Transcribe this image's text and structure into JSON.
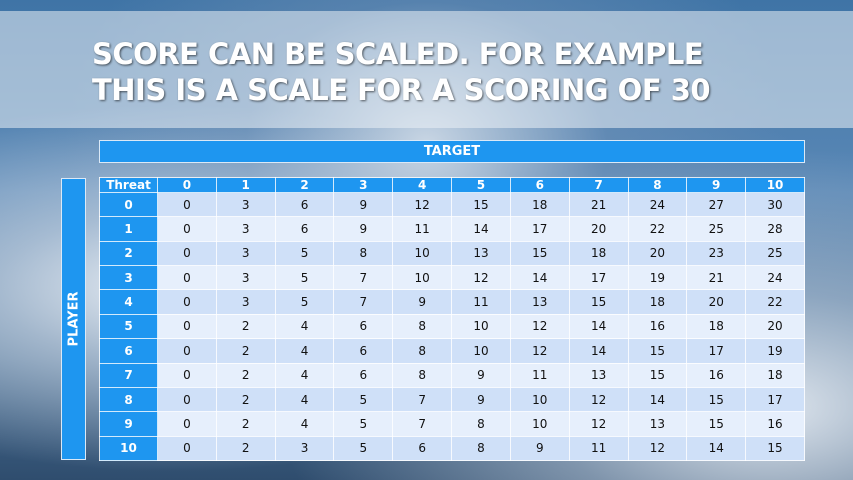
{
  "title_lines": [
    "SCORE CAN BE SCALED. FOR EXAMPLE",
    "THIS IS A SCALE FOR A SCORING OF 30"
  ],
  "target_label": "TARGET",
  "player_label": "PLAYER",
  "table": {
    "corner": "Threat",
    "columns": [
      "0",
      "1",
      "2",
      "3",
      "4",
      "5",
      "6",
      "7",
      "8",
      "9",
      "10"
    ],
    "rows": [
      {
        "label": "0",
        "values": [
          0,
          3,
          6,
          9,
          12,
          15,
          18,
          21,
          24,
          27,
          30
        ]
      },
      {
        "label": "1",
        "values": [
          0,
          3,
          6,
          9,
          11,
          14,
          17,
          20,
          22,
          25,
          28
        ]
      },
      {
        "label": "2",
        "values": [
          0,
          3,
          5,
          8,
          10,
          13,
          15,
          18,
          20,
          23,
          25
        ]
      },
      {
        "label": "3",
        "values": [
          0,
          3,
          5,
          7,
          10,
          12,
          14,
          17,
          19,
          21,
          24
        ]
      },
      {
        "label": "4",
        "values": [
          0,
          3,
          5,
          7,
          9,
          11,
          13,
          15,
          18,
          20,
          22
        ]
      },
      {
        "label": "5",
        "values": [
          0,
          2,
          4,
          6,
          8,
          10,
          12,
          14,
          16,
          18,
          20
        ]
      },
      {
        "label": "6",
        "values": [
          0,
          2,
          4,
          6,
          8,
          10,
          12,
          14,
          15,
          17,
          19
        ]
      },
      {
        "label": "7",
        "values": [
          0,
          2,
          4,
          6,
          8,
          9,
          11,
          13,
          15,
          16,
          18
        ]
      },
      {
        "label": "8",
        "values": [
          0,
          2,
          4,
          5,
          7,
          9,
          10,
          12,
          14,
          15,
          17
        ]
      },
      {
        "label": "9",
        "values": [
          0,
          2,
          4,
          5,
          7,
          8,
          10,
          12,
          13,
          15,
          16
        ]
      },
      {
        "label": "10",
        "values": [
          0,
          2,
          3,
          5,
          6,
          8,
          9,
          11,
          12,
          14,
          15
        ]
      }
    ]
  },
  "colors": {
    "header": "#1e96f0",
    "row_dark": "#cfe0f8",
    "row_light": "#e6effc"
  }
}
